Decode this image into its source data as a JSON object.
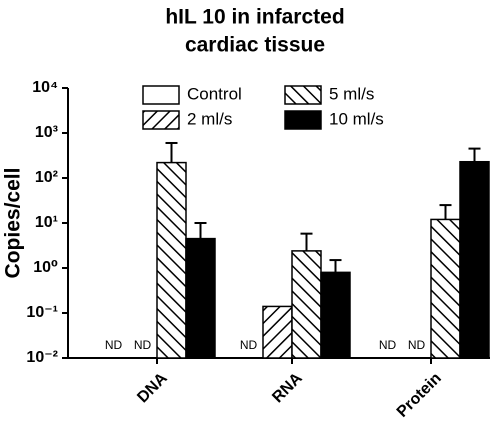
{
  "chart_data": {
    "type": "bar",
    "title": [
      "hIL 10 in infarcted",
      "cardiac tissue"
    ],
    "y_label": "Copies/cell",
    "log_scale": true,
    "categories": [
      "DNA",
      "RNA",
      "Protein"
    ],
    "ylim": [
      0.01,
      10000
    ],
    "yticks": [
      {
        "value": 0.01,
        "label": "10⁻²"
      },
      {
        "value": 0.1,
        "label": "10⁻¹"
      },
      {
        "value": 1,
        "label": "10⁰"
      },
      {
        "value": 10,
        "label": "10¹"
      },
      {
        "value": 100,
        "label": "10²"
      },
      {
        "value": 1000,
        "label": "10³"
      },
      {
        "value": 10000,
        "label": "10⁴"
      }
    ],
    "series": [
      {
        "name": "Control",
        "color": "#ffffff",
        "pattern": "none",
        "values": [
          null,
          null,
          null
        ],
        "value_labels": [
          "ND",
          "ND",
          "ND"
        ],
        "errors": [
          null,
          null,
          null
        ]
      },
      {
        "name": "2 ml/s",
        "color": "#ffffff",
        "pattern": "forward",
        "values": [
          null,
          0.14,
          null
        ],
        "value_labels": [
          "ND",
          null,
          "ND"
        ],
        "errors": [
          null,
          null,
          null
        ]
      },
      {
        "name": "5 ml/s",
        "color": "#ffffff",
        "pattern": "backward",
        "values": [
          220,
          2.4,
          12
        ],
        "value_labels": [
          null,
          null,
          null
        ],
        "errors": [
          380,
          3.4,
          13
        ]
      },
      {
        "name": "10 ml/s",
        "color": "#000000",
        "pattern": "none",
        "values": [
          4.5,
          0.8,
          230
        ],
        "value_labels": [
          null,
          null,
          null
        ],
        "errors": [
          5.5,
          0.7,
          220
        ]
      }
    ]
  }
}
